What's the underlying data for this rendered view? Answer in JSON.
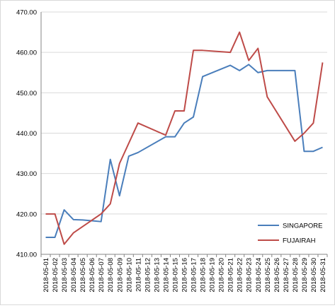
{
  "chart_data": {
    "type": "line",
    "title": "",
    "xlabel": "",
    "ylabel": "",
    "ylim": [
      410,
      470
    ],
    "y_ticks": [
      "410.00",
      "420.00",
      "430.00",
      "440.00",
      "450.00",
      "460.00",
      "470.00"
    ],
    "grid": "horizontal",
    "legend_position": "right",
    "categories": [
      "2018-05-01",
      "2018-05-02",
      "2018-05-03",
      "2018-05-04",
      "2018-05-05",
      "2018-05-06",
      "2018-05-07",
      "2018-05-08",
      "2018-05-09",
      "2018-05-10",
      "2018-05-11",
      "2018-05-12",
      "2018-05-13",
      "2018-05-14",
      "2018-05-15",
      "2018-05-16",
      "2018-05-17",
      "2018-05-18",
      "2018-05-19",
      "2018-05-20",
      "2018-05-21",
      "2018-05-22",
      "2018-05-23",
      "2018-05-24",
      "2018-05-25",
      "2018-05-26",
      "2018-05-27",
      "2018-05-28",
      "2018-05-29",
      "2018-05-30",
      "2018-05-31"
    ],
    "series": [
      {
        "name": "SINGAPORE",
        "color": "#4a7ebb",
        "values": [
          414.2,
          414.2,
          421.0,
          418.6,
          418.5,
          418.3,
          418.1,
          433.5,
          424.5,
          434.3,
          435.2,
          null,
          null,
          439.1,
          439.1,
          442.5,
          444.0,
          454.0,
          null,
          null,
          456.8,
          455.5,
          457.0,
          455.0,
          455.5,
          null,
          null,
          455.5,
          435.5,
          435.5,
          436.5
        ]
      },
      {
        "name": "FUJAIRAH",
        "color": "#be4b48",
        "values": [
          420.0,
          420.0,
          412.5,
          415.3,
          null,
          null,
          420.0,
          422.5,
          432.5,
          null,
          442.5,
          null,
          null,
          439.5,
          445.5,
          445.5,
          460.5,
          460.5,
          null,
          null,
          460.0,
          465.0,
          458.0,
          461.0,
          449.0,
          null,
          null,
          438.0,
          440.0,
          442.5,
          457.5
        ]
      }
    ]
  }
}
